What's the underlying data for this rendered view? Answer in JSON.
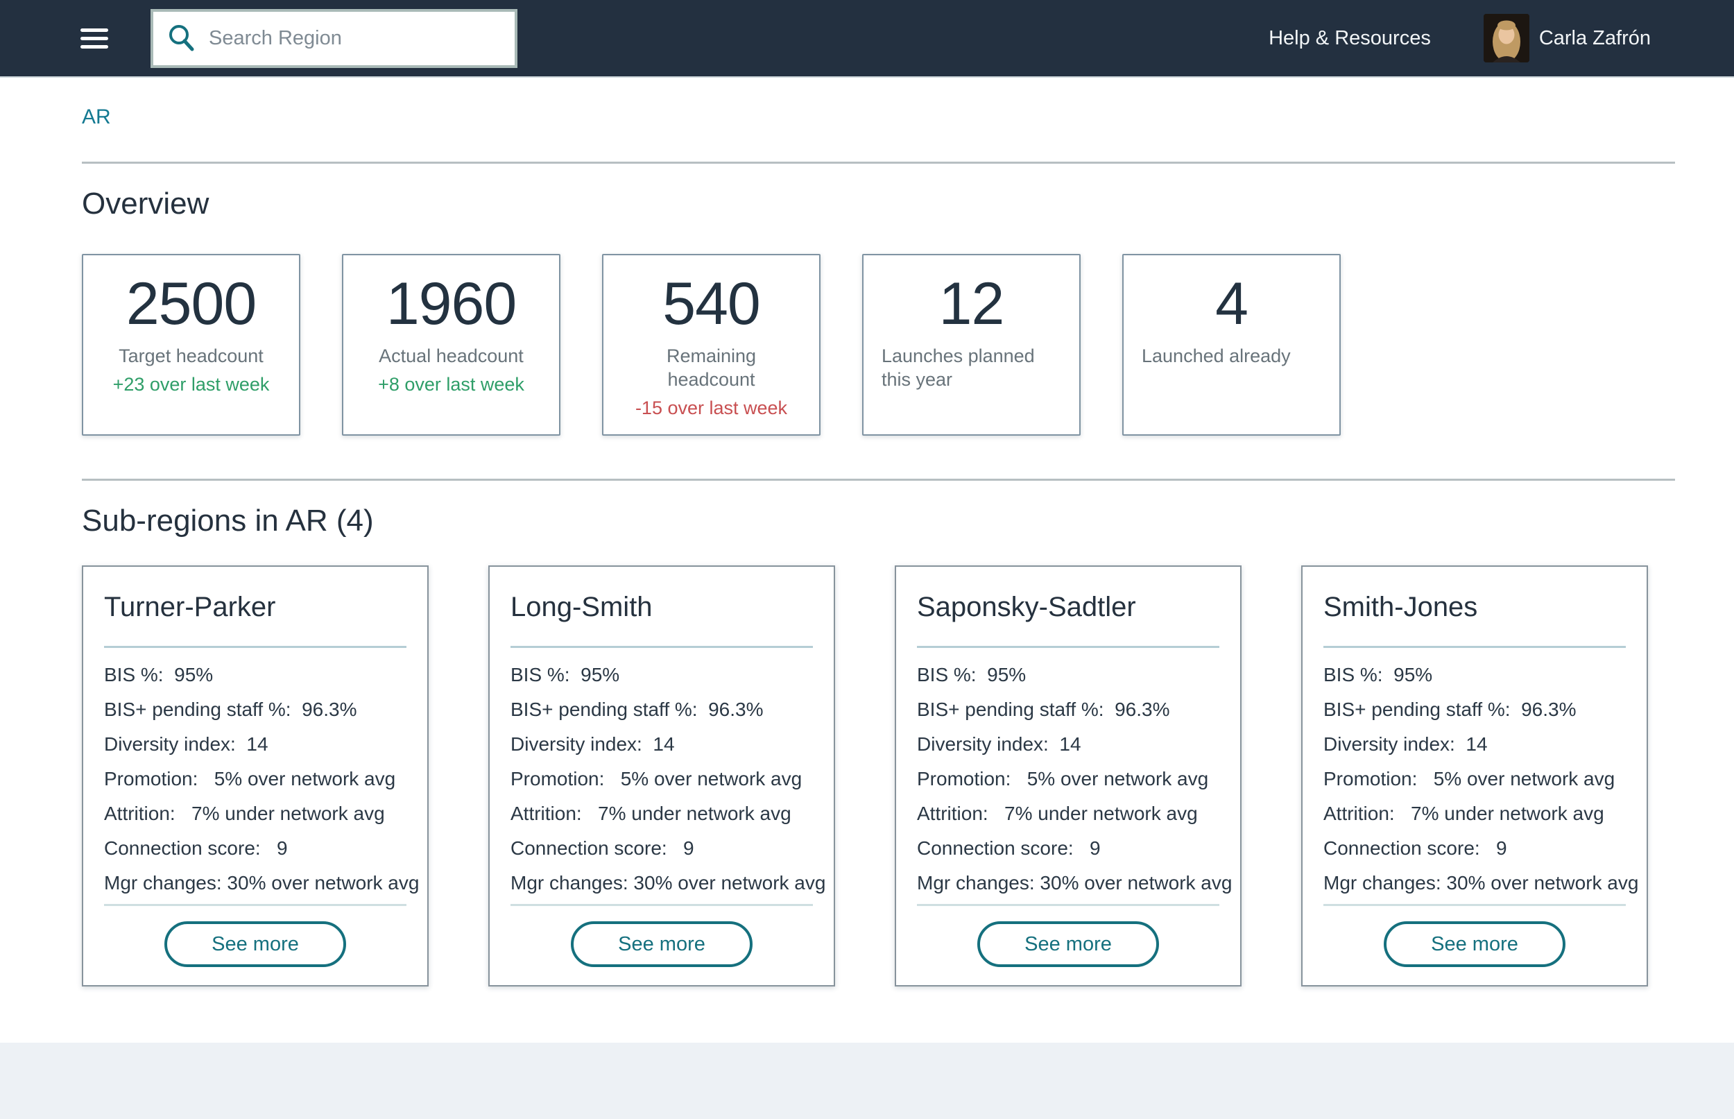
{
  "header": {
    "search_placeholder": "Search Region",
    "help_label": "Help & Resources",
    "user_name": "Carla Zafrón"
  },
  "breadcrumb": {
    "label": "AR"
  },
  "overview": {
    "title": "Overview",
    "cards": [
      {
        "value": "2500",
        "label": "Target headcount",
        "delta": "+23 over last week",
        "delta_color": "green"
      },
      {
        "value": "1960",
        "label": "Actual headcount",
        "delta": "+8 over last week",
        "delta_color": "green"
      },
      {
        "value": "540",
        "label": "Remaining headcount",
        "delta": "-15 over last week",
        "delta_color": "red"
      },
      {
        "value": "12",
        "label": "Launches planned this year",
        "delta": null,
        "delta_color": null
      },
      {
        "value": "4",
        "label": "Launched already",
        "delta": null,
        "delta_color": null
      }
    ]
  },
  "subregions": {
    "title": "Sub-regions in AR (4)",
    "see_more_label": "See more",
    "cards": [
      {
        "title": "Turner-Parker",
        "stats": [
          "BIS %:  95%",
          "BIS+ pending staff %:  96.3%",
          "Diversity index:  14",
          "Promotion:   5% over network avg",
          "Attrition:   7% under network avg",
          "Connection score:   9",
          "Mgr changes: 30% over network avg"
        ]
      },
      {
        "title": "Long-Smith",
        "stats": [
          "BIS %:  95%",
          "BIS+ pending staff %:  96.3%",
          "Diversity index:  14",
          "Promotion:   5% over network avg",
          "Attrition:   7% under network avg",
          "Connection score:   9",
          "Mgr changes: 30% over network avg"
        ]
      },
      {
        "title": "Saponsky-Sadtler",
        "stats": [
          "BIS %:  95%",
          "BIS+ pending staff %:  96.3%",
          "Diversity index:  14",
          "Promotion:   5% over network avg",
          "Attrition:   7% under network avg",
          "Connection score:   9",
          "Mgr changes: 30% over network avg"
        ]
      },
      {
        "title": "Smith-Jones",
        "stats": [
          "BIS %:  95%",
          "BIS+ pending staff %:  96.3%",
          "Diversity index:  14",
          "Promotion:   5% over network avg",
          "Attrition:   7% under network avg",
          "Connection score:   9",
          "Mgr changes: 30% over network avg"
        ]
      }
    ]
  },
  "colors": {
    "header_bg": "#233040",
    "accent_teal": "#15707e",
    "link_teal": "#147a92",
    "positive_green": "#2f9e68",
    "negative_red": "#c84f51",
    "footer_bg": "#edf1f5",
    "number_navy": "#233240",
    "label_gray": "#68737a"
  }
}
